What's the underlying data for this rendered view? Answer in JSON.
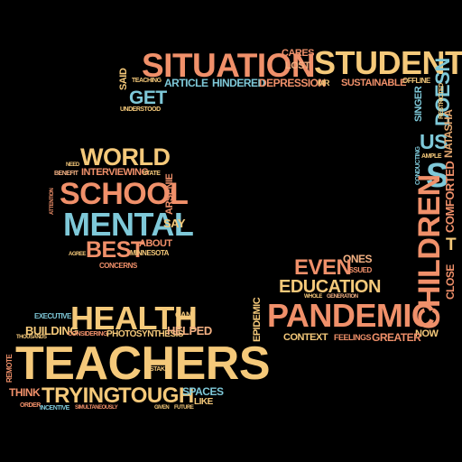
{
  "palette": {
    "yellow": "#f5c97a",
    "salmon": "#f0906a",
    "teal": "#7ec8d8",
    "peach": "#f4b183",
    "tan": "#e3a66e"
  },
  "words": {
    "situation": "SITUATION",
    "cares": "CARES",
    "lost": "LOST",
    "student": "STUDENT",
    "said": "SAID",
    "teaching": "TEACHING",
    "article": "ARTICLE",
    "hindered": "HINDERED",
    "depression": "DEPRESSION",
    "mr": "MR",
    "sustainable": "SUSTAINABLE",
    "offline": "OFFLINE",
    "get": "GET",
    "understood": "UNDERSTOOD",
    "doesn": "DOESN",
    "restricted": "RESTRICTED",
    "singer": "SINGER",
    "us": "US",
    "natasha": "NATASHA",
    "world": "WORLD",
    "need": "NEED",
    "benefit": "BENEFIT",
    "interviewing": "INTERVIEWING",
    "state": "STATE",
    "conducting": "CONDUCTING",
    "ample": "AMPLE",
    "s": "S",
    "school": "SCHOOL",
    "arsenie": "ARSENIE",
    "attention": "ATTENTION",
    "mental": "MENTAL",
    "say": "SAY",
    "comforted": "COMFORTED",
    "children": "CHILDREN",
    "t": "T",
    "best": "BEST",
    "about": "ABOUT",
    "agree": "AGREE",
    "minnesota": "MINNESOTA",
    "concerns": "CONCERNS",
    "ones": "ONES",
    "even": "EVEN",
    "issued": "ISSUED",
    "close": "CLOSE",
    "education": "EDUCATION",
    "whole": "WHOLE",
    "generation": "GENERATION",
    "epidemic": "EPIDEMIC",
    "pandemic": "PANDEMIC",
    "context": "CONTEXT",
    "feelings": "FEELINGS",
    "greater": "GREATER",
    "now": "NOW",
    "executive": "EXECUTIVE",
    "health": "HEALTH",
    "can": "CAN",
    "building": "BUILDING",
    "considering": "CONSIDERING",
    "photosynthesis": "PHOTOSYNTHESIS",
    "helped": "HELPED",
    "thousands": "THOUSANDS",
    "teachers": "TEACHERS",
    "remote": "REMOTE",
    "stake": "STAKE",
    "think": "THINK",
    "trying": "TRYING",
    "tough": "TOUGH",
    "spaces": "SPACES",
    "like": "LIKE",
    "order": "ORDER",
    "incentive": "INCENTIVE",
    "simultaneously": "SIMULTANEOUSLY",
    "given": "GIVEN",
    "future": "FUTURE"
  }
}
